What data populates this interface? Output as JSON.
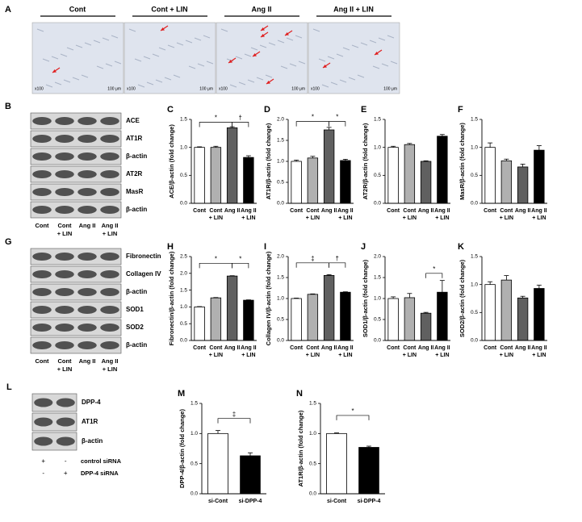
{
  "micrographs": {
    "label": "A",
    "groups": [
      "Cont",
      "Cont + LIN",
      "Ang II",
      "Ang II + LIN"
    ],
    "magnification": "x100",
    "scale": "100 μm"
  },
  "blots": [
    {
      "label": "B",
      "bands": [
        "ACE",
        "AT1R",
        "β-actin",
        "AT2R",
        "MasR",
        "β-actin"
      ],
      "lanes": [
        [
          "Cont"
        ],
        [
          "Cont",
          "+ LIN"
        ],
        [
          "Ang II"
        ],
        [
          "Ang II",
          "+ LIN"
        ]
      ]
    },
    {
      "label": "G",
      "bands": [
        "Fibronectin",
        "Collagen IV",
        "β-actin",
        "SOD1",
        "SOD2",
        "β-actin"
      ],
      "lanes": [
        [
          "Cont"
        ],
        [
          "Cont",
          "+ LIN"
        ],
        [
          "Ang II"
        ],
        [
          "Ang II",
          "+ LIN"
        ]
      ]
    },
    {
      "label": "L",
      "bands": [
        "DPP-4",
        "AT1R",
        "β-actin"
      ],
      "rows": [
        {
          "name": "control siRNA",
          "signs": [
            "+",
            "-"
          ]
        },
        {
          "name": "DPP-4 siRNA",
          "signs": [
            "-",
            "+"
          ]
        }
      ]
    }
  ],
  "chart_data": [
    {
      "type": "bar",
      "label": "C",
      "ylabel": "ACE/β-actin (fold change)",
      "categories": [
        [
          "Cont"
        ],
        [
          "Cont",
          "+ LIN"
        ],
        [
          "Ang II"
        ],
        [
          "Ang II",
          "+ LIN"
        ]
      ],
      "values": [
        1.0,
        1.0,
        1.35,
        0.82
      ],
      "errors": [
        0.01,
        0.02,
        0.02,
        0.03
      ],
      "colors": [
        "#ffffff",
        "#b0b0b0",
        "#606060",
        "#000000"
      ],
      "ylim": [
        0,
        1.5
      ],
      "yticks": [
        {
          "value": 0,
          "label": "0.0"
        },
        0.5,
        {
          "value": 1,
          "label": "1.0"
        },
        1.5
      ],
      "brackets": [
        {
          "label": "*",
          "from": 0,
          "to": 2,
          "y": 1.45
        },
        {
          "label": "†",
          "from": 2,
          "to": 3,
          "y": 1.45
        }
      ]
    },
    {
      "type": "bar",
      "label": "D",
      "ylabel": "AT1R/β-actin (fold change)",
      "categories": [
        [
          "Cont"
        ],
        [
          "Cont",
          "+ LIN"
        ],
        [
          "Ang II"
        ],
        [
          "Ang II",
          "+ LIN"
        ]
      ],
      "values": [
        1.0,
        1.08,
        1.75,
        1.02
      ],
      "errors": [
        0.03,
        0.04,
        0.06,
        0.03
      ],
      "colors": [
        "#ffffff",
        "#b0b0b0",
        "#606060",
        "#000000"
      ],
      "ylim": [
        0,
        2
      ],
      "yticks": [
        {
          "value": 0,
          "label": "0.0"
        },
        0.5,
        {
          "value": 1,
          "label": "1.0"
        },
        1.5,
        {
          "value": 2,
          "label": "2.0"
        }
      ],
      "brackets": [
        {
          "label": "*",
          "from": 0,
          "to": 2,
          "y": 1.95
        },
        {
          "label": "*",
          "from": 2,
          "to": 3,
          "y": 1.95
        }
      ]
    },
    {
      "type": "bar",
      "label": "E",
      "ylabel": "AT2R/β-actin (fold change)",
      "categories": [
        [
          "Cont"
        ],
        [
          "Cont",
          "+ LIN"
        ],
        [
          "Ang II"
        ],
        [
          "Ang II",
          "+ LIN"
        ]
      ],
      "values": [
        1.0,
        1.05,
        0.75,
        1.2
      ],
      "errors": [
        0.02,
        0.02,
        0.01,
        0.03
      ],
      "colors": [
        "#ffffff",
        "#b0b0b0",
        "#606060",
        "#000000"
      ],
      "ylim": [
        0,
        1.5
      ],
      "yticks": [
        {
          "value": 0,
          "label": "0.0"
        },
        0.5,
        {
          "value": 1,
          "label": "1.0"
        },
        1.5
      ],
      "brackets": []
    },
    {
      "type": "bar",
      "label": "F",
      "ylabel": "MasR/β-actin (fold change)",
      "categories": [
        [
          "Cont"
        ],
        [
          "Cont",
          "+ LIN"
        ],
        [
          "Ang II"
        ],
        [
          "Ang II",
          "+ LIN"
        ]
      ],
      "values": [
        1.0,
        0.76,
        0.65,
        0.95
      ],
      "errors": [
        0.08,
        0.03,
        0.05,
        0.08
      ],
      "colors": [
        "#ffffff",
        "#b0b0b0",
        "#606060",
        "#000000"
      ],
      "ylim": [
        0,
        1.5
      ],
      "yticks": [
        {
          "value": 0,
          "label": "0.0"
        },
        0.5,
        {
          "value": 1,
          "label": "1.0"
        },
        1.5
      ],
      "brackets": []
    },
    {
      "type": "bar",
      "label": "H",
      "ylabel": "Fibronectin/β-actin (fold change)",
      "categories": [
        [
          "Cont"
        ],
        [
          "Cont",
          "+ LIN"
        ],
        [
          "Ang II"
        ],
        [
          "Ang II",
          "+ LIN"
        ]
      ],
      "values": [
        1.0,
        1.27,
        1.92,
        1.2
      ],
      "errors": [
        0.01,
        0.01,
        0.01,
        0.01
      ],
      "colors": [
        "#ffffff",
        "#b0b0b0",
        "#606060",
        "#000000"
      ],
      "ylim": [
        0,
        2.5
      ],
      "yticks": [
        {
          "value": 0,
          "label": "0.0"
        },
        0.5,
        {
          "value": 1,
          "label": "1.0"
        },
        1.5,
        {
          "value": 2,
          "label": "2.0"
        },
        2.5
      ],
      "brackets": [
        {
          "label": "*",
          "from": 0,
          "to": 2,
          "y": 2.3
        },
        {
          "label": "*",
          "from": 2,
          "to": 3,
          "y": 2.3
        }
      ]
    },
    {
      "type": "bar",
      "label": "I",
      "ylabel": "Collagen IV/β-actin (fold change)",
      "categories": [
        [
          "Cont"
        ],
        [
          "Cont",
          "+ LIN"
        ],
        [
          "Ang II"
        ],
        [
          "Ang II",
          "+ LIN"
        ]
      ],
      "values": [
        1.0,
        1.1,
        1.55,
        1.15
      ],
      "errors": [
        0.01,
        0.01,
        0.02,
        0.01
      ],
      "colors": [
        "#ffffff",
        "#b0b0b0",
        "#606060",
        "#000000"
      ],
      "ylim": [
        0,
        2
      ],
      "yticks": [
        {
          "value": 0,
          "label": "0.0"
        },
        0.5,
        {
          "value": 1,
          "label": "1.0"
        },
        1.5,
        {
          "value": 2,
          "label": "2.0"
        }
      ],
      "brackets": [
        {
          "label": "‡",
          "from": 0,
          "to": 2,
          "y": 1.85
        },
        {
          "label": "†",
          "from": 2,
          "to": 3,
          "y": 1.85
        }
      ]
    },
    {
      "type": "bar",
      "label": "J",
      "ylabel": "SOD1/β-actin (fold change)",
      "categories": [
        [
          "Cont"
        ],
        [
          "Cont",
          "+ LIN"
        ],
        [
          "Ang II"
        ],
        [
          "Ang II",
          "+ LIN"
        ]
      ],
      "values": [
        1.0,
        1.02,
        0.65,
        1.15
      ],
      "errors": [
        0.04,
        0.1,
        0.02,
        0.28
      ],
      "colors": [
        "#ffffff",
        "#b0b0b0",
        "#606060",
        "#000000"
      ],
      "ylim": [
        0,
        2
      ],
      "yticks": [
        {
          "value": 0,
          "label": "0.0"
        },
        0.5,
        {
          "value": 1,
          "label": "1.0"
        },
        1.5,
        {
          "value": 2,
          "label": "2.0"
        }
      ],
      "brackets": [
        {
          "label": "*",
          "from": 2,
          "to": 3,
          "y": 1.6
        }
      ]
    },
    {
      "type": "bar",
      "label": "K",
      "ylabel": "SOD2/β-actin (fold change)",
      "categories": [
        [
          "Cont"
        ],
        [
          "Cont",
          "+ LIN"
        ],
        [
          "Ang II"
        ],
        [
          "Ang II",
          "+ LIN"
        ]
      ],
      "values": [
        1.0,
        1.08,
        0.76,
        0.93
      ],
      "errors": [
        0.05,
        0.08,
        0.03,
        0.06
      ],
      "colors": [
        "#ffffff",
        "#b0b0b0",
        "#606060",
        "#000000"
      ],
      "ylim": [
        0,
        1.5
      ],
      "yticks": [
        {
          "value": 0,
          "label": "0.0"
        },
        0.5,
        {
          "value": 1,
          "label": "1.0"
        },
        1.5
      ],
      "brackets": []
    },
    {
      "type": "bar",
      "label": "M",
      "ylabel": "DPP-4/β-actin (fold change)",
      "categories": [
        [
          "si-Cont"
        ],
        [
          "si-DPP-4"
        ]
      ],
      "values": [
        1.0,
        0.63
      ],
      "errors": [
        0.05,
        0.05
      ],
      "colors": [
        "#ffffff",
        "#000000"
      ],
      "ylim": [
        0,
        1.5
      ],
      "yticks": [
        {
          "value": 0,
          "label": "0.0"
        },
        0.5,
        {
          "value": 1,
          "label": "1.0"
        },
        1.5
      ],
      "brackets": [
        {
          "label": "‡",
          "from": 0,
          "to": 1,
          "y": 1.25
        }
      ]
    },
    {
      "type": "bar",
      "label": "N",
      "ylabel": "AT1R/β-actin (fold change)",
      "categories": [
        [
          "si-Cont"
        ],
        [
          "si-DPP-4"
        ]
      ],
      "values": [
        1.0,
        0.77
      ],
      "errors": [
        0.01,
        0.02
      ],
      "colors": [
        "#ffffff",
        "#000000"
      ],
      "ylim": [
        0,
        1.5
      ],
      "yticks": [
        {
          "value": 0,
          "label": "0.0"
        },
        0.5,
        {
          "value": 1,
          "label": "1.0"
        },
        1.5
      ],
      "brackets": [
        {
          "label": "*",
          "from": 0,
          "to": 1,
          "y": 1.3
        }
      ]
    }
  ]
}
